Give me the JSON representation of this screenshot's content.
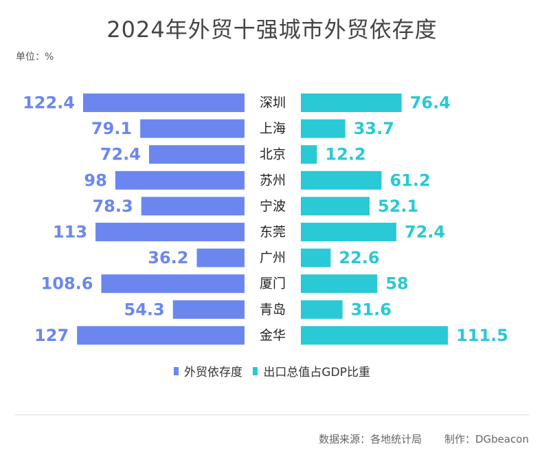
{
  "chart_data": {
    "type": "bar",
    "title": "2024年外贸十强城市外贸依存度",
    "unit_label": "单位：%",
    "categories": [
      "深圳",
      "上海",
      "北京",
      "苏州",
      "宁波",
      "东莞",
      "广州",
      "厦门",
      "青岛",
      "金华"
    ],
    "series": [
      {
        "name": "外贸依存度",
        "color": "#6b87ef",
        "values": [
          122.4,
          79.1,
          72.4,
          98,
          78.3,
          113,
          36.2,
          108.6,
          54.3,
          127
        ],
        "labels": [
          "122.4",
          "79.1",
          "72.4",
          "98",
          "78.3",
          "113",
          "36.2",
          "108.6",
          "54.3",
          "127"
        ]
      },
      {
        "name": "出口总值占GDP比重",
        "color": "#29c9d6",
        "values": [
          76.4,
          33.7,
          12.2,
          61.2,
          52.1,
          72.4,
          22.6,
          58,
          31.6,
          111.5
        ],
        "labels": [
          "76.4",
          "33.7",
          "12.2",
          "61.2",
          "52.1",
          "72.4",
          "22.6",
          "58",
          "31.6",
          "111.5"
        ]
      }
    ],
    "legend_position": "bottom"
  },
  "footer": {
    "source": "数据来源：各地统计局",
    "author": "制作：DGbeacon"
  }
}
